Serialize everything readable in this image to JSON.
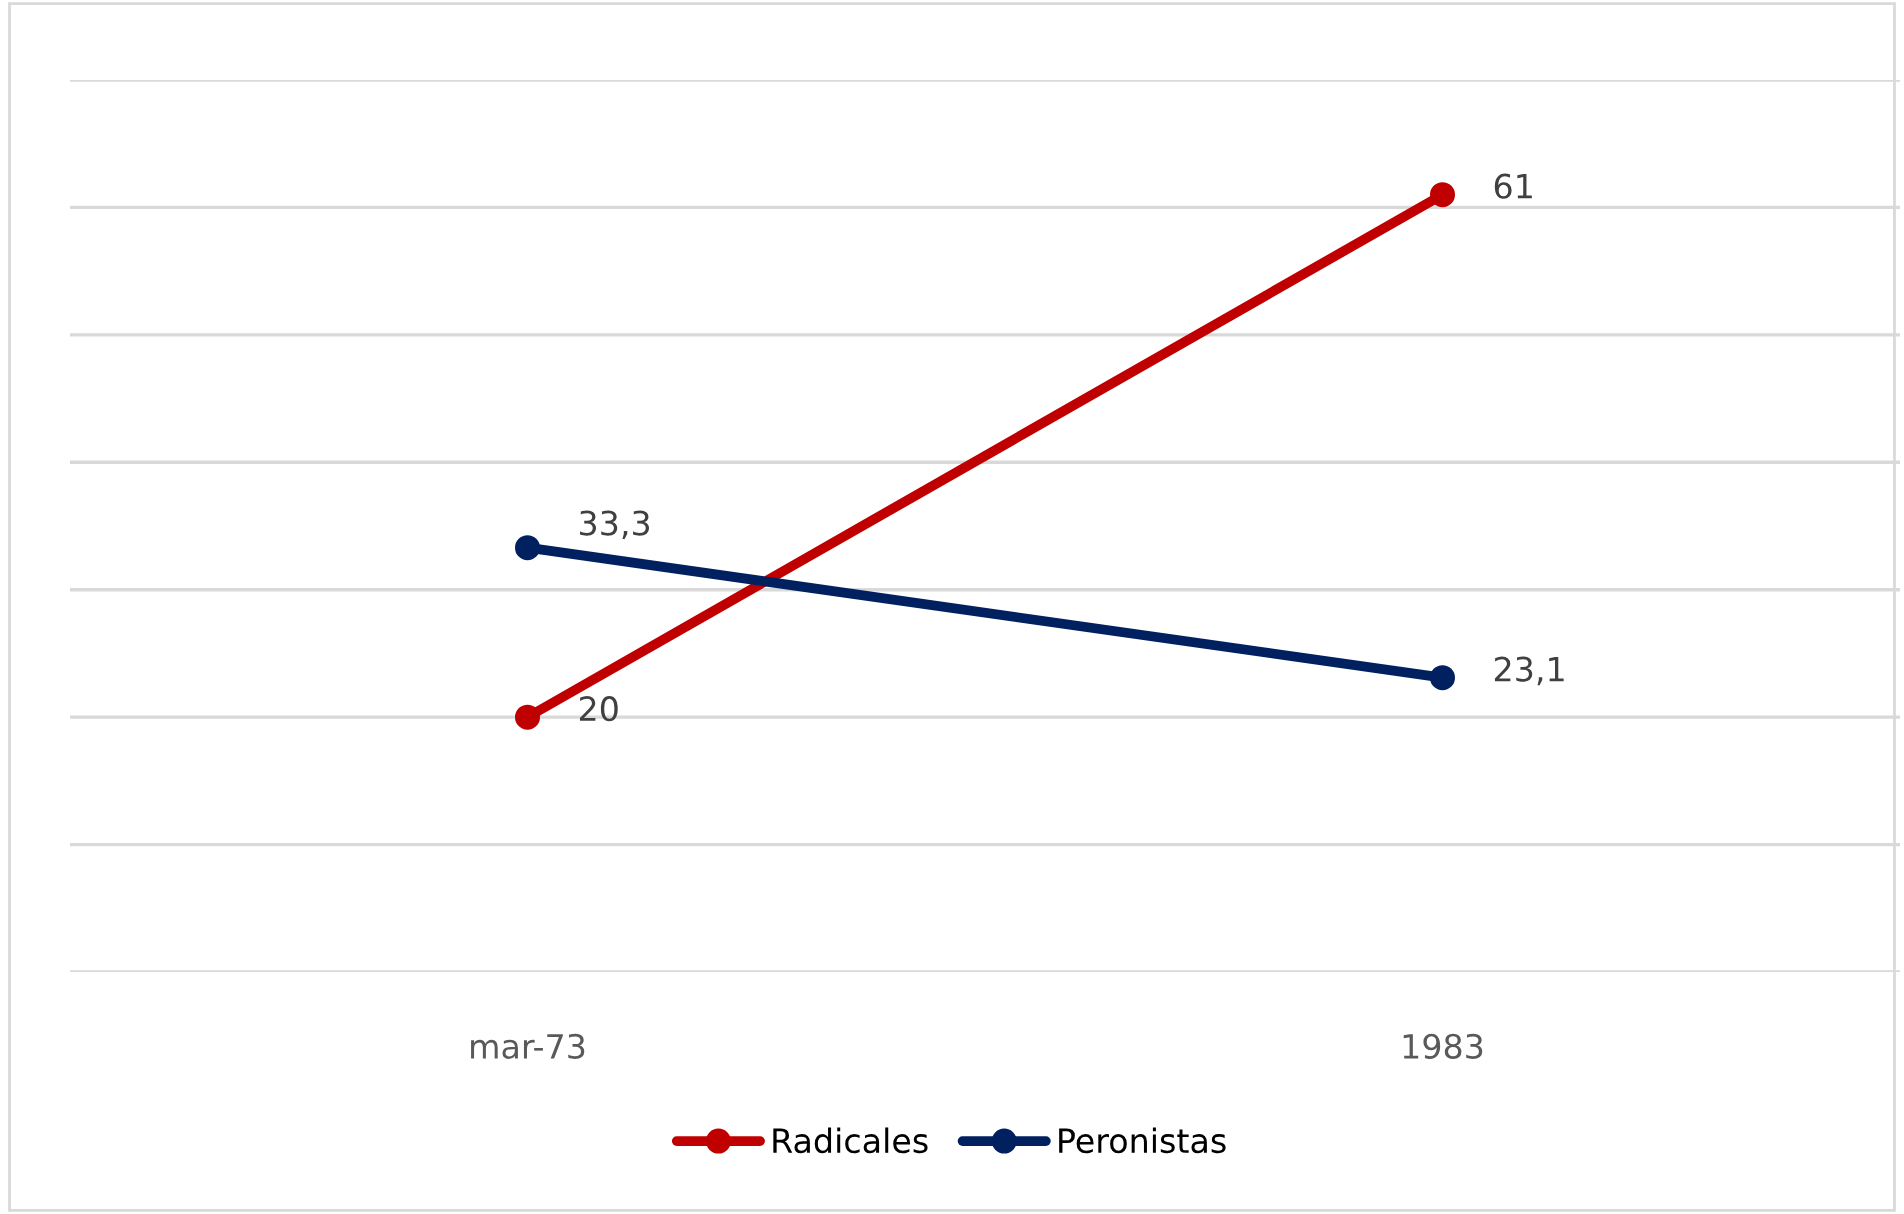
{
  "chart_data": {
    "type": "line",
    "categories": [
      "mar-73",
      "1983"
    ],
    "series": [
      {
        "name": "Radicales",
        "color": "#c00000",
        "values": [
          20,
          61
        ],
        "value_labels": [
          "20",
          "61"
        ]
      },
      {
        "name": "Peronistas",
        "color": "#002060",
        "values": [
          33.3,
          23.1
        ],
        "value_labels": [
          "33,3",
          "23,1"
        ]
      }
    ],
    "ylim": [
      0,
      70
    ],
    "yticks": [
      {
        "value": 0,
        "label": null
      },
      {
        "value": 10,
        "label": null
      },
      {
        "value": 20,
        "label": null
      },
      {
        "value": 30,
        "label": null
      },
      {
        "value": 40,
        "label": null
      },
      {
        "value": 50,
        "label": null
      },
      {
        "value": 60,
        "label": null
      },
      {
        "value": 70,
        "label": null
      }
    ],
    "tick_labels": "x",
    "grid": "y",
    "legend": "bottom",
    "marker": "circle",
    "line_style": "solid"
  }
}
